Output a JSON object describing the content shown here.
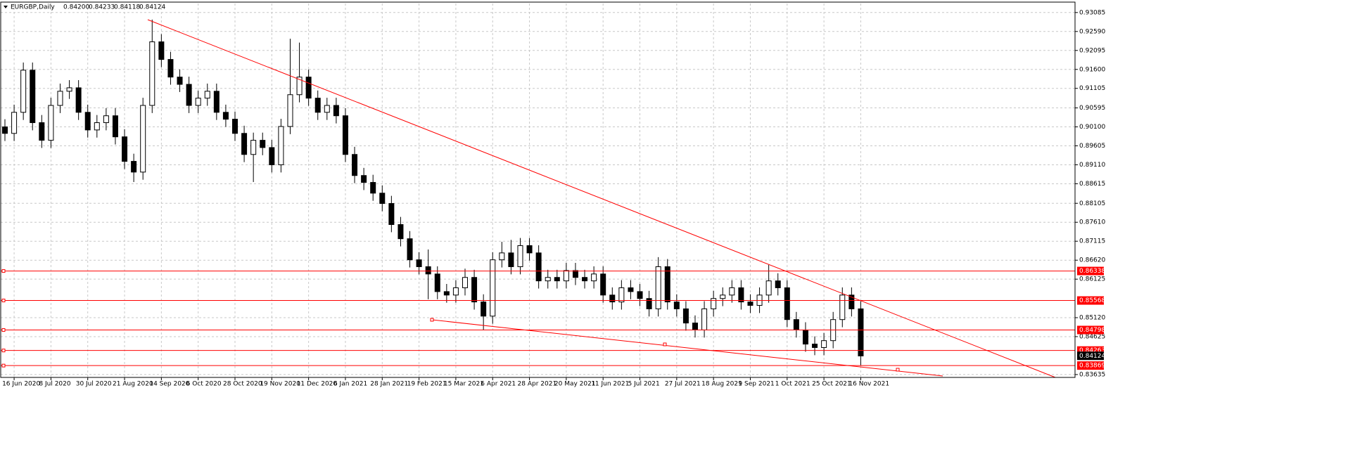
{
  "chart_data": {
    "type": "candlestick",
    "title": "EURGBP,Daily",
    "header_quote": [
      "0.84200",
      "0.84233",
      "0.84118",
      "0.84124"
    ],
    "categories": [
      null,
      "16 Jun 2020",
      null,
      null,
      null,
      "8 Jul 2020",
      null,
      null,
      null,
      "30 Jul 2020",
      null,
      null,
      null,
      "21 Aug 2020",
      null,
      null,
      null,
      "14 Sep 2020",
      null,
      null,
      null,
      "6 Oct 2020",
      null,
      null,
      null,
      "28 Oct 2020",
      null,
      null,
      null,
      "19 Nov 2020",
      null,
      null,
      null,
      "11 Dec 2020",
      null,
      null,
      null,
      "6 Jan 2021",
      null,
      null,
      null,
      "28 Jan 2021",
      null,
      null,
      null,
      "19 Feb 2021",
      null,
      null,
      null,
      "15 Mar 2021",
      null,
      null,
      null,
      "6 Apr 2021",
      null,
      null,
      null,
      "28 Apr 2021",
      null,
      null,
      null,
      "20 May 2021",
      null,
      null,
      null,
      "11 Jun 2021",
      null,
      null,
      null,
      "5 Jul 2021",
      null,
      null,
      null,
      "27 Jul 2021",
      null,
      null,
      null,
      "18 Aug 2021",
      null,
      null,
      null,
      "9 Sep 2021",
      null,
      null,
      null,
      "1 Oct 2021",
      null,
      null,
      null,
      "25 Oct 2021",
      null,
      null,
      null,
      "16 Nov 2021"
    ],
    "open": [
      0.901,
      0.8993,
      0.9048,
      0.9158,
      0.9021,
      0.8975,
      0.9066,
      0.9103,
      0.9112,
      0.9048,
      0.9002,
      0.9021,
      0.9039,
      0.8984,
      0.892,
      0.8892,
      0.9066,
      0.9232,
      0.9186,
      0.914,
      0.9121,
      0.9066,
      0.9085,
      0.9103,
      0.9048,
      0.903,
      0.8993,
      0.8938,
      0.8975,
      0.8956,
      0.8911,
      0.9011,
      0.9094,
      0.914,
      0.9085,
      0.9048,
      0.9066,
      0.9039,
      0.8938,
      0.8883,
      0.8865,
      0.8837,
      0.881,
      0.8755,
      0.8718,
      0.8663,
      0.8645,
      0.8626,
      0.858,
      0.8571,
      0.859,
      0.8617,
      0.8553,
      0.8516,
      0.8663,
      0.8681,
      0.8645,
      0.87,
      0.8681,
      0.8608,
      0.8617,
      0.8608,
      0.8635,
      0.8617,
      0.8608,
      0.8626,
      0.8571,
      0.8553,
      0.859,
      0.858,
      0.8562,
      0.8535,
      0.8645,
      0.8553,
      0.8535,
      0.8498,
      0.848,
      0.8535,
      0.8562,
      0.8571,
      0.859,
      0.8553,
      0.8544,
      0.8571,
      0.8608,
      0.859,
      0.8507,
      0.848,
      0.8443,
      0.8434,
      0.8452,
      0.8507,
      0.8571,
      0.8535
    ],
    "high": [
      0.903,
      0.9068,
      0.9178,
      0.9178,
      0.9041,
      0.9086,
      0.9123,
      0.9132,
      0.9132,
      0.9068,
      0.9041,
      0.9059,
      0.9059,
      0.9004,
      0.894,
      0.9086,
      0.929,
      0.9252,
      0.9206,
      0.916,
      0.9141,
      0.9105,
      0.9123,
      0.9123,
      0.9068,
      0.905,
      0.9013,
      0.8995,
      0.8995,
      0.8976,
      0.9031,
      0.924,
      0.923,
      0.916,
      0.9105,
      0.9086,
      0.9086,
      0.9059,
      0.8958,
      0.8903,
      0.8885,
      0.8857,
      0.883,
      0.8775,
      0.8738,
      0.8683,
      0.869,
      0.8646,
      0.86,
      0.861,
      0.864,
      0.8637,
      0.8573,
      0.8683,
      0.871,
      0.8715,
      0.872,
      0.872,
      0.8701,
      0.8637,
      0.8637,
      0.8655,
      0.8655,
      0.8637,
      0.8646,
      0.8646,
      0.8591,
      0.861,
      0.861,
      0.86,
      0.8582,
      0.867,
      0.8665,
      0.8573,
      0.8555,
      0.8518,
      0.8555,
      0.8582,
      0.8591,
      0.861,
      0.861,
      0.8573,
      0.8591,
      0.865,
      0.8628,
      0.861,
      0.8527,
      0.85,
      0.8463,
      0.8472,
      0.8527,
      0.8591,
      0.8591,
      0.8555
    ],
    "low": [
      0.8973,
      0.8973,
      0.9028,
      0.9001,
      0.8955,
      0.8955,
      0.9046,
      0.9083,
      0.9028,
      0.8982,
      0.8982,
      0.9001,
      0.8964,
      0.89,
      0.8866,
      0.8872,
      0.9046,
      0.9166,
      0.912,
      0.9101,
      0.9046,
      0.9046,
      0.9065,
      0.9028,
      0.901,
      0.8973,
      0.8918,
      0.8866,
      0.8936,
      0.8891,
      0.8891,
      0.8991,
      0.9074,
      0.9065,
      0.9028,
      0.9028,
      0.9019,
      0.8918,
      0.8863,
      0.8845,
      0.8817,
      0.879,
      0.8735,
      0.8698,
      0.8643,
      0.8625,
      0.856,
      0.856,
      0.8551,
      0.8551,
      0.857,
      0.8533,
      0.848,
      0.8496,
      0.8643,
      0.8625,
      0.8625,
      0.8661,
      0.8588,
      0.8588,
      0.8588,
      0.8588,
      0.8597,
      0.8588,
      0.8588,
      0.8551,
      0.8533,
      0.8533,
      0.856,
      0.8542,
      0.8515,
      0.8515,
      0.8533,
      0.8515,
      0.8478,
      0.846,
      0.846,
      0.8515,
      0.8542,
      0.8551,
      0.8533,
      0.8524,
      0.8524,
      0.8551,
      0.857,
      0.8487,
      0.846,
      0.8423,
      0.8414,
      0.8414,
      0.8432,
      0.8487,
      0.8515,
      0.8387
    ],
    "close": [
      0.8993,
      0.9048,
      0.9158,
      0.9021,
      0.8975,
      0.9066,
      0.9103,
      0.9112,
      0.9048,
      0.9002,
      0.9021,
      0.9039,
      0.8984,
      0.892,
      0.8892,
      0.9066,
      0.9232,
      0.9186,
      0.914,
      0.9121,
      0.9066,
      0.9085,
      0.9103,
      0.9048,
      0.903,
      0.8993,
      0.8938,
      0.8975,
      0.8956,
      0.8911,
      0.9011,
      0.9094,
      0.914,
      0.9085,
      0.9048,
      0.9066,
      0.9039,
      0.8938,
      0.8883,
      0.8865,
      0.8837,
      0.881,
      0.8755,
      0.8718,
      0.8663,
      0.8645,
      0.8626,
      0.858,
      0.8571,
      0.859,
      0.8617,
      0.8553,
      0.8516,
      0.8663,
      0.8681,
      0.8645,
      0.87,
      0.8681,
      0.8608,
      0.8617,
      0.8608,
      0.8635,
      0.8617,
      0.8608,
      0.8626,
      0.8571,
      0.8553,
      0.859,
      0.858,
      0.8562,
      0.8535,
      0.8645,
      0.8553,
      0.8535,
      0.8498,
      0.848,
      0.8535,
      0.8562,
      0.8571,
      0.859,
      0.8553,
      0.8544,
      0.8571,
      0.8608,
      0.859,
      0.8507,
      0.848,
      0.8443,
      0.8434,
      0.8452,
      0.8507,
      0.8571,
      0.8535,
      0.8412
    ],
    "bull_color": "#ffffff",
    "bear_color": "#000000",
    "ylim": [
      0.8356,
      0.9332
    ],
    "yticks": [
      0.93085,
      {
        "value": 0.9259,
        "label": "0.92590"
      },
      0.92095,
      {
        "value": 0.916,
        "label": "0.91600"
      },
      0.91105,
      0.90595,
      {
        "value": 0.901,
        "label": "0.90100"
      },
      0.89605,
      {
        "value": 0.8911,
        "label": "0.89110"
      },
      0.88615,
      0.88105,
      {
        "value": 0.8761,
        "label": "0.87610"
      },
      0.87115,
      {
        "value": 0.8662,
        "label": "0.86620"
      },
      0.86125,
      {
        "value": 0.8512,
        "label": "0.85120"
      },
      0.84625,
      0.83635
    ],
    "grid": true,
    "levels": [
      {
        "value": 0.86338,
        "color": "#ff0000"
      },
      {
        "value": 0.85568,
        "color": "#ff0000"
      },
      {
        "value": 0.84798,
        "color": "#ff0000"
      },
      {
        "value": 0.84263,
        "color": "#ff0000"
      },
      {
        "value": 0.83869,
        "color": "#ff0000"
      }
    ],
    "current_price": 0.84124
  }
}
